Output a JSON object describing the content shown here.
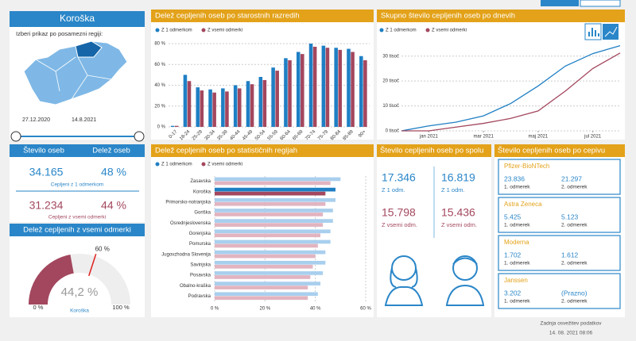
{
  "header": {
    "region_title": "Koroška",
    "prompt": "Izberi prikaz po posamezni regiji:",
    "date_from": "27.12.2020",
    "date_to": "14.8.2021"
  },
  "kpis": {
    "headers": [
      "Število oseb",
      "Delež oseb"
    ],
    "rows": [
      {
        "count": "34.165",
        "share": "48 %",
        "label": "Cepljeni z 1 odmerkom"
      },
      {
        "count": "31.234",
        "share": "44 %",
        "label": "Cepljeni z vsemi odmerki"
      }
    ]
  },
  "chart_data": [
    {
      "type": "bar",
      "title": "Delež cepljenih oseb po starostnih razredih",
      "categories": [
        "0-17",
        "18-24",
        "25-29",
        "30-34",
        "35-39",
        "40-44",
        "45-49",
        "50-54",
        "55-59",
        "60-64",
        "65-69",
        "70-74",
        "75-79",
        "80-84",
        "85-89",
        "90+"
      ],
      "series": [
        {
          "name": "Z 1 odmerkom",
          "color": "#1f7fc4",
          "values": [
            1,
            50,
            38,
            36,
            37,
            40,
            44,
            48,
            57,
            66,
            72,
            80,
            78,
            76,
            75,
            68
          ]
        },
        {
          "name": "Z vsemi odmerki",
          "color": "#a3475e",
          "values": [
            1,
            44,
            35,
            33,
            34,
            37,
            41,
            45,
            54,
            64,
            70,
            77,
            76,
            74,
            72,
            64
          ]
        }
      ],
      "ylim": [
        0,
        80
      ],
      "yticks": [
        {
          "value": 0,
          "label": "0 %"
        },
        {
          "value": 20,
          "label": "20 %"
        },
        {
          "value": 40,
          "label": "40 %"
        },
        {
          "value": 60,
          "label": "60 %"
        },
        {
          "value": 80,
          "label": "80 %"
        }
      ],
      "grid": true
    },
    {
      "type": "line",
      "title": "Skupno število cepljenih oseb po dnevih",
      "x": [
        "2020-12",
        "2021-01",
        "2021-02",
        "2021-03",
        "2021-04",
        "2021-05",
        "2021-06",
        "2021-07",
        "2021-08"
      ],
      "series": [
        {
          "name": "Z 1 odmerkom",
          "color": "#1f7fc4",
          "values": [
            0,
            2000,
            3500,
            6000,
            11000,
            18000,
            26000,
            31000,
            34165
          ]
        },
        {
          "name": "Z vsemi odmerki",
          "color": "#a3475e",
          "values": [
            0,
            0,
            1500,
            3000,
            5000,
            8000,
            16000,
            25000,
            31234
          ]
        }
      ],
      "ylim": [
        0,
        35000
      ],
      "yticks": [
        {
          "value": 0,
          "label": "0 tisoč"
        },
        {
          "value": 10000,
          "label": "10 tisoč"
        },
        {
          "value": 20000,
          "label": "20 tisoč"
        },
        {
          "value": 30000,
          "label": "30 tisoč"
        }
      ],
      "xticks": [
        {
          "value": "2021-01",
          "label": "jan 2021"
        },
        {
          "value": "2021-03",
          "label": "mar 2021"
        },
        {
          "value": "2021-05",
          "label": "maj 2021"
        },
        {
          "value": "2021-07",
          "label": "jul 2021"
        }
      ],
      "grid": true
    },
    {
      "type": "bar",
      "orientation": "horizontal",
      "title": "Delež cepljenih oseb po statističnih regijah",
      "categories": [
        "Zasavska",
        "Koroška",
        "Primorsko-notranjska",
        "Goriška",
        "Osrednjeslovenska",
        "Gorenjska",
        "Pomurska",
        "Jugovzhodna Slovenija",
        "Savinjska",
        "Posavska",
        "Obalno-kraška",
        "Podravska"
      ],
      "series": [
        {
          "name": "Z 1 odmerkom",
          "color": "#1f7fc4",
          "light_color": "#a9cfee",
          "values": [
            50,
            48,
            48,
            47,
            47,
            46,
            46,
            44,
            44,
            43,
            42,
            41
          ]
        },
        {
          "name": "Z vsemi odmerki",
          "color": "#a3475e",
          "light_color": "#e2b4c0",
          "values": [
            46,
            44,
            44,
            43,
            43,
            42,
            41,
            40,
            39,
            38,
            37,
            37
          ]
        }
      ],
      "highlight": "Koroška",
      "xlim": [
        0,
        60
      ],
      "xticks": [
        {
          "value": 0,
          "label": "0 %"
        },
        {
          "value": 20,
          "label": "20 %"
        },
        {
          "value": 40,
          "label": "40 %"
        },
        {
          "value": 60,
          "label": "60 %"
        }
      ],
      "grid": true
    },
    {
      "type": "gauge",
      "title": "Delež cepljenih z vsemi odmerki",
      "value": 44.2,
      "value_label": "44,2 %",
      "caption": "Koroška",
      "range": [
        {
          "value": 0,
          "label": "0 %"
        },
        {
          "value": 100,
          "label": "100 %"
        }
      ],
      "target": {
        "value": 60,
        "label": "60 %"
      },
      "color": "#a3475e"
    }
  ],
  "sex": {
    "title": "Število cepljenih oseb po spolu",
    "groups": [
      {
        "first": "17.346",
        "first_label": "Z 1 odm.",
        "all": "15.798",
        "all_label": "Z vsemi odm."
      },
      {
        "first": "16.819",
        "first_label": "Z 1 odm.",
        "all": "15.436",
        "all_label": "Z vsemi odm."
      }
    ]
  },
  "vaccines": {
    "title": "Število cepljenih oseb po cepivu",
    "dose_labels": [
      "1. odmerek",
      "2. odmerek"
    ],
    "items": [
      {
        "name": "Pfizer-BioNTech",
        "doses": [
          "23.836",
          "21.297"
        ]
      },
      {
        "name": "Astra Zeneca",
        "doses": [
          "5.425",
          "5.123"
        ]
      },
      {
        "name": "Moderna",
        "doses": [
          "1.702",
          "1.612"
        ]
      },
      {
        "name": "Janssen",
        "doses": [
          "3.202",
          "(Prazno)"
        ]
      }
    ]
  },
  "footer": {
    "label": "Zadnja osvežitev podatkov",
    "timestamp": "14. 08. 2021 08:06"
  }
}
